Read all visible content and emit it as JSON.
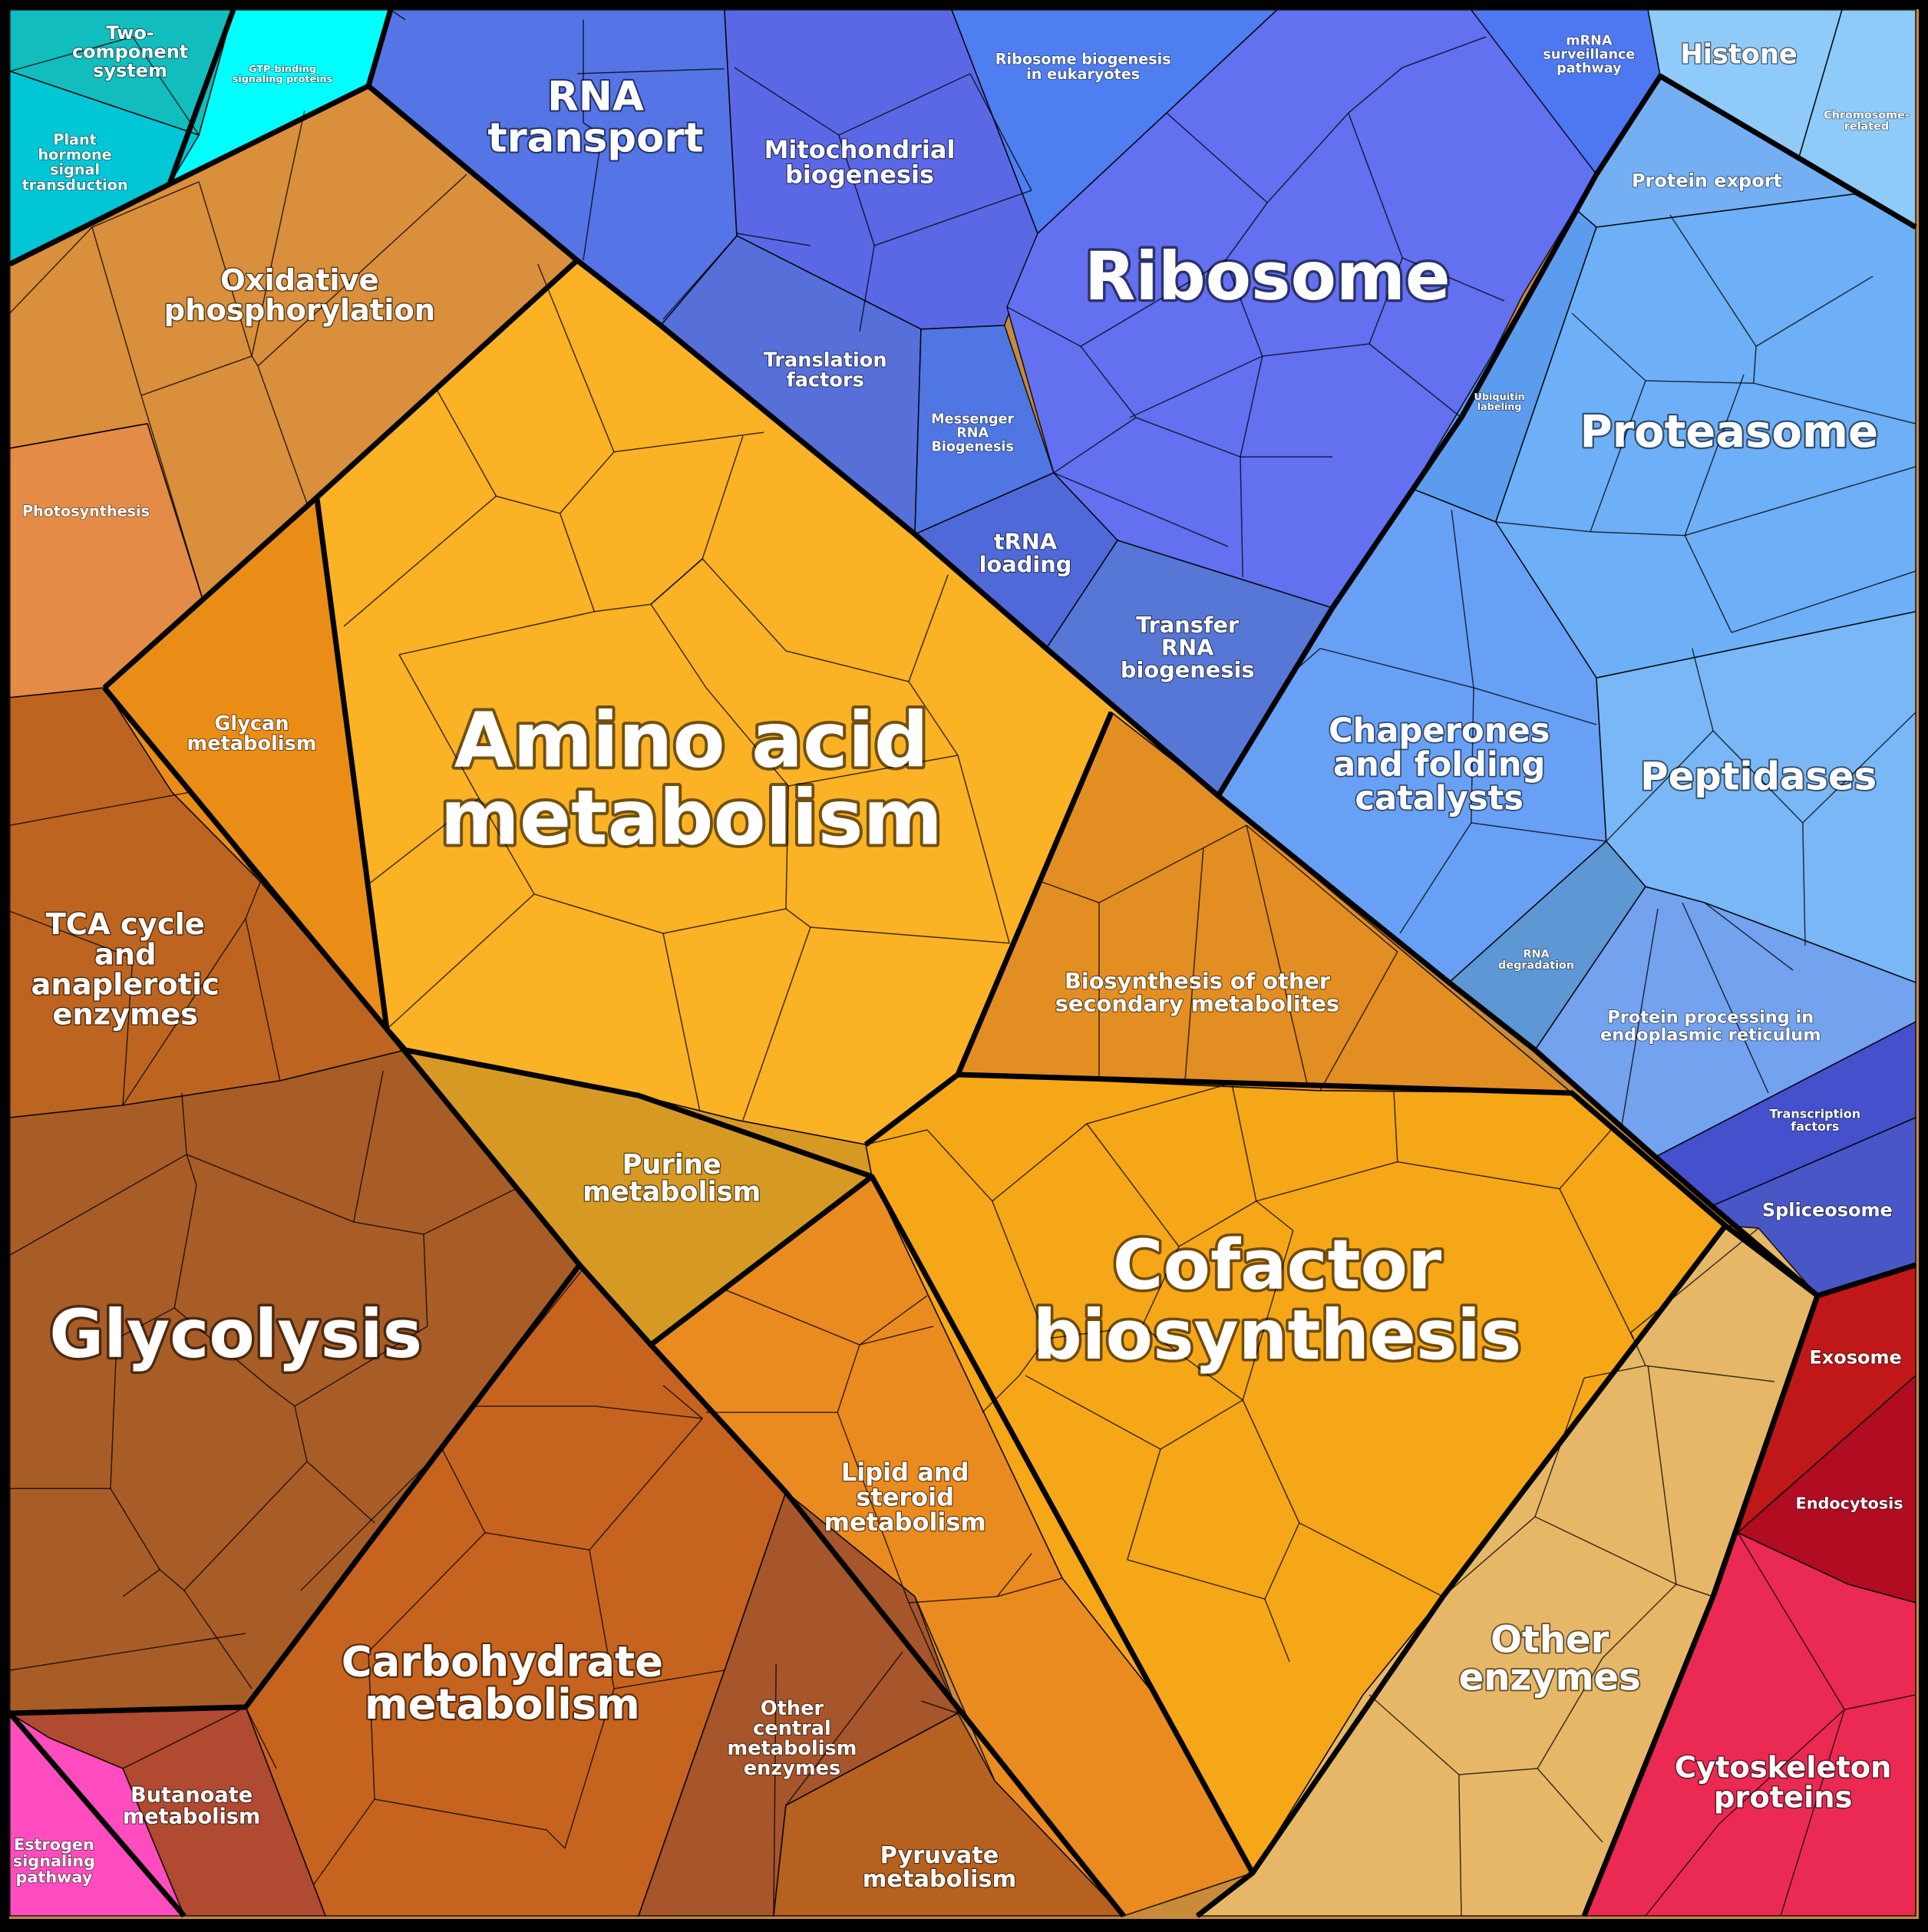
{
  "groups": [
    {
      "id": "two-component",
      "label": "Two-\ncomponent\nsystem",
      "color": "#12bdbd"
    },
    {
      "id": "plant-hormone",
      "label": "Plant\nhormone\nsignal\ntransduction",
      "color": "#00c6d6"
    },
    {
      "id": "gtp-binding",
      "label": "GTP-binding\nsignaling proteins",
      "color": "#00ffff"
    },
    {
      "id": "rna-transport",
      "label": "RNA\ntransport",
      "color": "#5574e6"
    },
    {
      "id": "mito-biogenesis",
      "label": "Mitochondrial\nbiogenesis",
      "color": "#5b68e6"
    },
    {
      "id": "ribosome-euk",
      "label": "Ribosome biogenesis\nin eukaryotes",
      "color": "#4e7ef0"
    },
    {
      "id": "mrna-surveillance",
      "label": "mRNA\nsurveillance\npathway",
      "color": "#4d78f2"
    },
    {
      "id": "histone",
      "label": "Histone",
      "color": "#90caf9"
    },
    {
      "id": "chromosome",
      "label": "Chromosome-\nrelated",
      "color": "#8fcbf8"
    },
    {
      "id": "protein-export",
      "label": "Protein export",
      "color": "#74aff3"
    },
    {
      "id": "ribosome",
      "label": "Ribosome",
      "color": "#6370f0"
    },
    {
      "id": "translation-factors",
      "label": "Translation\nfactors",
      "color": "#566fd9"
    },
    {
      "id": "messenger-rna",
      "label": "Messenger\nRNA\nBiogenesis",
      "color": "#4f76e3"
    },
    {
      "id": "trna-loading",
      "label": "tRNA\nloading",
      "color": "#4f6ad8"
    },
    {
      "id": "transfer-rna",
      "label": "Transfer\nRNA\nbiogenesis",
      "color": "#5677d6"
    },
    {
      "id": "ubiquitin",
      "label": "Ubiquitin\nlabeling",
      "color": "#5c9cee"
    },
    {
      "id": "proteasome",
      "label": "Proteasome",
      "color": "#6eb0f7"
    },
    {
      "id": "chaperones",
      "label": "Chaperones\nand folding\ncatalysts",
      "color": "#68a0f5"
    },
    {
      "id": "peptidases",
      "label": "Peptidases",
      "color": "#7ab7f6"
    },
    {
      "id": "rna-degradation",
      "label": "RNA\ndegradation",
      "color": "#5d97d4"
    },
    {
      "id": "er-processing",
      "label": "Protein processing in\nendoplasmic reticulum",
      "color": "#73a2ee"
    },
    {
      "id": "transcription-factors",
      "label": "Transcription\nfactors",
      "color": "#4450cc"
    },
    {
      "id": "spliceosome",
      "label": "Spliceosome",
      "color": "#4957c6"
    },
    {
      "id": "oxphos",
      "label": "Oxidative\nphosphorylation",
      "color": "#d98f3c"
    },
    {
      "id": "photosynthesis",
      "label": "Photosynthesis",
      "color": "#e38b47"
    },
    {
      "id": "amino-acid",
      "label": "Amino acid\nmetabolism",
      "color": "#fbb224"
    },
    {
      "id": "glycan",
      "label": "Glycan\nmetabolism",
      "color": "#ea8d17"
    },
    {
      "id": "tca",
      "label": "TCA cycle\nand\nanaplerotic\nenzymes",
      "color": "#bd6520"
    },
    {
      "id": "glycolysis",
      "label": "Glycolysis",
      "color": "#a85d27"
    },
    {
      "id": "biosynthesis-secondary",
      "label": "Biosynthesis of other\nsecondary metabolites",
      "color": "#e38e22"
    },
    {
      "id": "purine",
      "label": "Purine\nmetabolism",
      "color": "#d69a24"
    },
    {
      "id": "cofactor",
      "label": "Cofactor\nbiosynthesis",
      "color": "#f6a717"
    },
    {
      "id": "lipid",
      "label": "Lipid and\nsteroid\nmetabolism",
      "color": "#ea8b20"
    },
    {
      "id": "carbohydrate",
      "label": "Carbohydrate\nmetabolism",
      "color": "#c6641f"
    },
    {
      "id": "other-central",
      "label": "Other\ncentral\nmetabolism\nenzymes",
      "color": "#a7552a"
    },
    {
      "id": "pyruvate",
      "label": "Pyruvate\nmetabolism",
      "color": "#b6611f"
    },
    {
      "id": "butanoate",
      "label": "Butanoate\nmetabolism",
      "color": "#b04a30"
    },
    {
      "id": "estrogen",
      "label": "Estrogen\nsignaling\npathway",
      "color": "#ff4dbf"
    },
    {
      "id": "other-enzymes",
      "label": "Other\nenzymes",
      "color": "#e7b768"
    },
    {
      "id": "exosome",
      "label": "Exosome",
      "color": "#c01818"
    },
    {
      "id": "endocytosis",
      "label": "Endocytosis",
      "color": "#b10c22"
    },
    {
      "id": "cytoskeleton",
      "label": "Cytoskeleton\nproteins",
      "color": "#ea2a52"
    }
  ]
}
